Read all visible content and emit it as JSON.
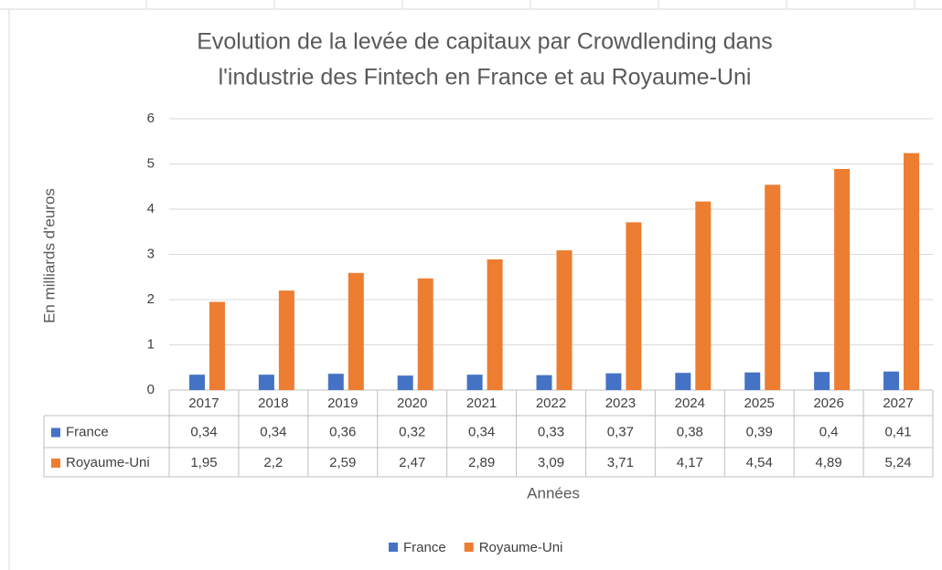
{
  "chart_data": {
    "type": "bar",
    "title": [
      "Evolution de la levée de capitaux par Crowdlending dans",
      "l'industrie des Fintech en France et au Royaume-Uni"
    ],
    "y_label": "En milliards d'euros",
    "x_label": "Années",
    "categories": [
      "2017",
      "2018",
      "2019",
      "2020",
      "2021",
      "2022",
      "2023",
      "2024",
      "2025",
      "2026",
      "2027"
    ],
    "series": [
      {
        "name": "France",
        "color": "#4472c4",
        "values": [
          0.34,
          0.34,
          0.36,
          0.32,
          0.34,
          0.33,
          0.37,
          0.38,
          0.39,
          0.4,
          0.41
        ],
        "value_labels": [
          "0,34",
          "0,34",
          "0,36",
          "0,32",
          "0,34",
          "0,33",
          "0,37",
          "0,38",
          "0,39",
          "0,4",
          "0,41"
        ]
      },
      {
        "name": "Royaume-Uni",
        "color": "#ed7d31",
        "values": [
          1.95,
          2.2,
          2.59,
          2.47,
          2.89,
          3.09,
          3.71,
          4.17,
          4.54,
          4.89,
          5.24
        ],
        "value_labels": [
          "1,95",
          "2,2",
          "2,59",
          "2,47",
          "2,89",
          "3,09",
          "3,71",
          "4,17",
          "4,54",
          "4,89",
          "5,24"
        ]
      }
    ],
    "ylim": [
      0,
      6
    ],
    "yticks": [
      0,
      1,
      2,
      3,
      4,
      5,
      6
    ],
    "grid": true,
    "legend": "bottom"
  }
}
